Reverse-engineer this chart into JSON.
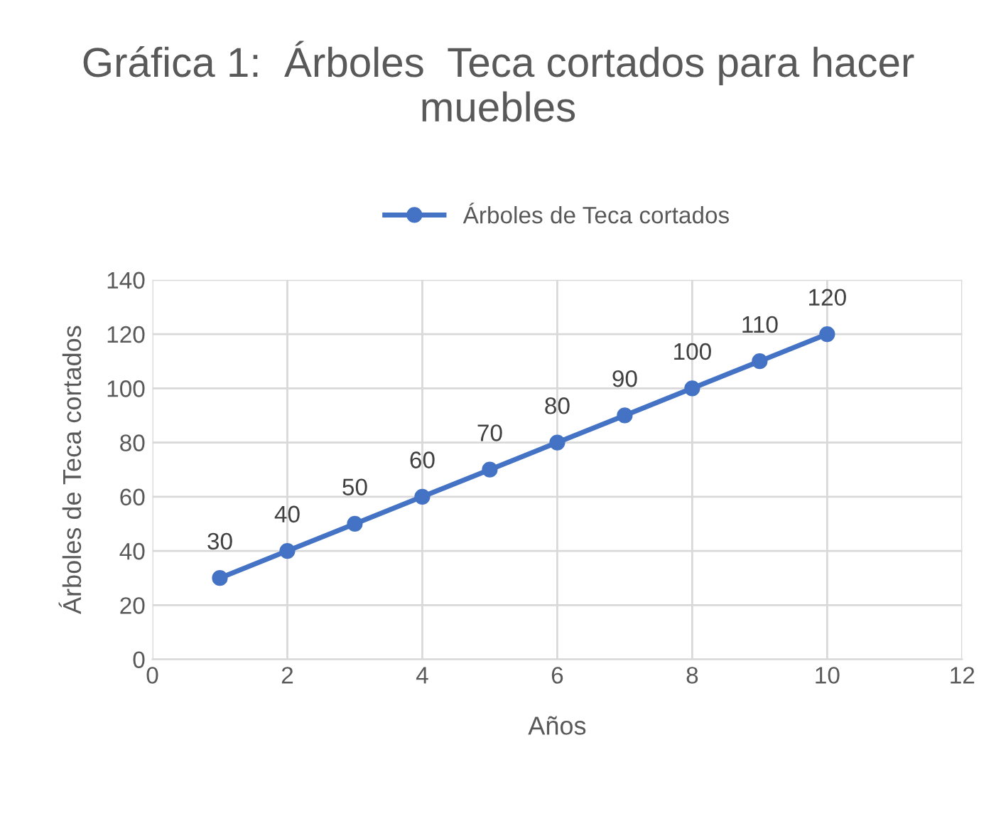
{
  "chart_data": {
    "type": "line",
    "title": "Gráfica 1:  Árboles  Teca cortados para hacer muebles",
    "xlabel": "Años",
    "ylabel": "Árboles de Teca cortados",
    "x": [
      1,
      2,
      3,
      4,
      5,
      6,
      7,
      8,
      9,
      10
    ],
    "series": [
      {
        "name": "Árboles de Teca cortados",
        "color": "#4472c4",
        "values": [
          30,
          40,
          50,
          60,
          70,
          80,
          90,
          100,
          110,
          120
        ]
      }
    ],
    "xlim": [
      0,
      12
    ],
    "xticks": [
      0,
      2,
      4,
      6,
      8,
      10,
      12
    ],
    "ylim": [
      0,
      140
    ],
    "yticks": [
      0,
      20,
      40,
      60,
      80,
      100,
      120,
      140
    ],
    "grid": true,
    "legend": "top",
    "marker": "circle",
    "line_style": "solid",
    "data_labels": true
  }
}
